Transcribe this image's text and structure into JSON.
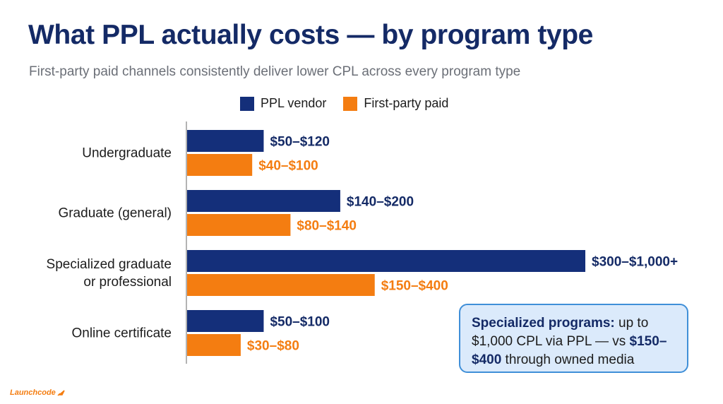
{
  "title": "What PPL actually costs — by program type",
  "subtitle": "First-party paid channels consistently deliver lower CPL across every program type",
  "legend": [
    {
      "label": "PPL vendor",
      "color": "#142f7a"
    },
    {
      "label": "First-party paid",
      "color": "#f47d11"
    }
  ],
  "chart_data": {
    "type": "bar",
    "orientation": "horizontal",
    "categories": [
      [
        "Undergraduate"
      ],
      [
        "Graduate (general)"
      ],
      [
        "Specialized graduate",
        "or professional"
      ],
      [
        "Online certificate"
      ]
    ],
    "series": [
      {
        "name": "PPL vendor",
        "color": "#142f7a",
        "range_low": [
          50,
          140,
          300,
          50
        ],
        "range_high": [
          120,
          200,
          1000,
          100
        ],
        "values": [
          100,
          200,
          520,
          100
        ],
        "labels": [
          "$50–$120",
          "$140–$200",
          "$300–$1,000+",
          "$50–$100"
        ]
      },
      {
        "name": "First-party paid",
        "color": "#f47d11",
        "range_low": [
          40,
          80,
          150,
          30
        ],
        "range_high": [
          100,
          140,
          400,
          80
        ],
        "values": [
          85,
          135,
          245,
          70
        ],
        "labels": [
          "$40–$100",
          "$80–$140",
          "$150–$400",
          "$30–$80"
        ]
      }
    ],
    "xlim": [
      0,
      520
    ],
    "grid": false,
    "legend_position": "top-center"
  },
  "callout": {
    "strong1": "Specialized programs:",
    "text1": " up to $1,000 CPL via PPL — vs ",
    "strong2": "$150–$400",
    "text2": " through owned media"
  },
  "brand": {
    "name": "Launchcode"
  }
}
